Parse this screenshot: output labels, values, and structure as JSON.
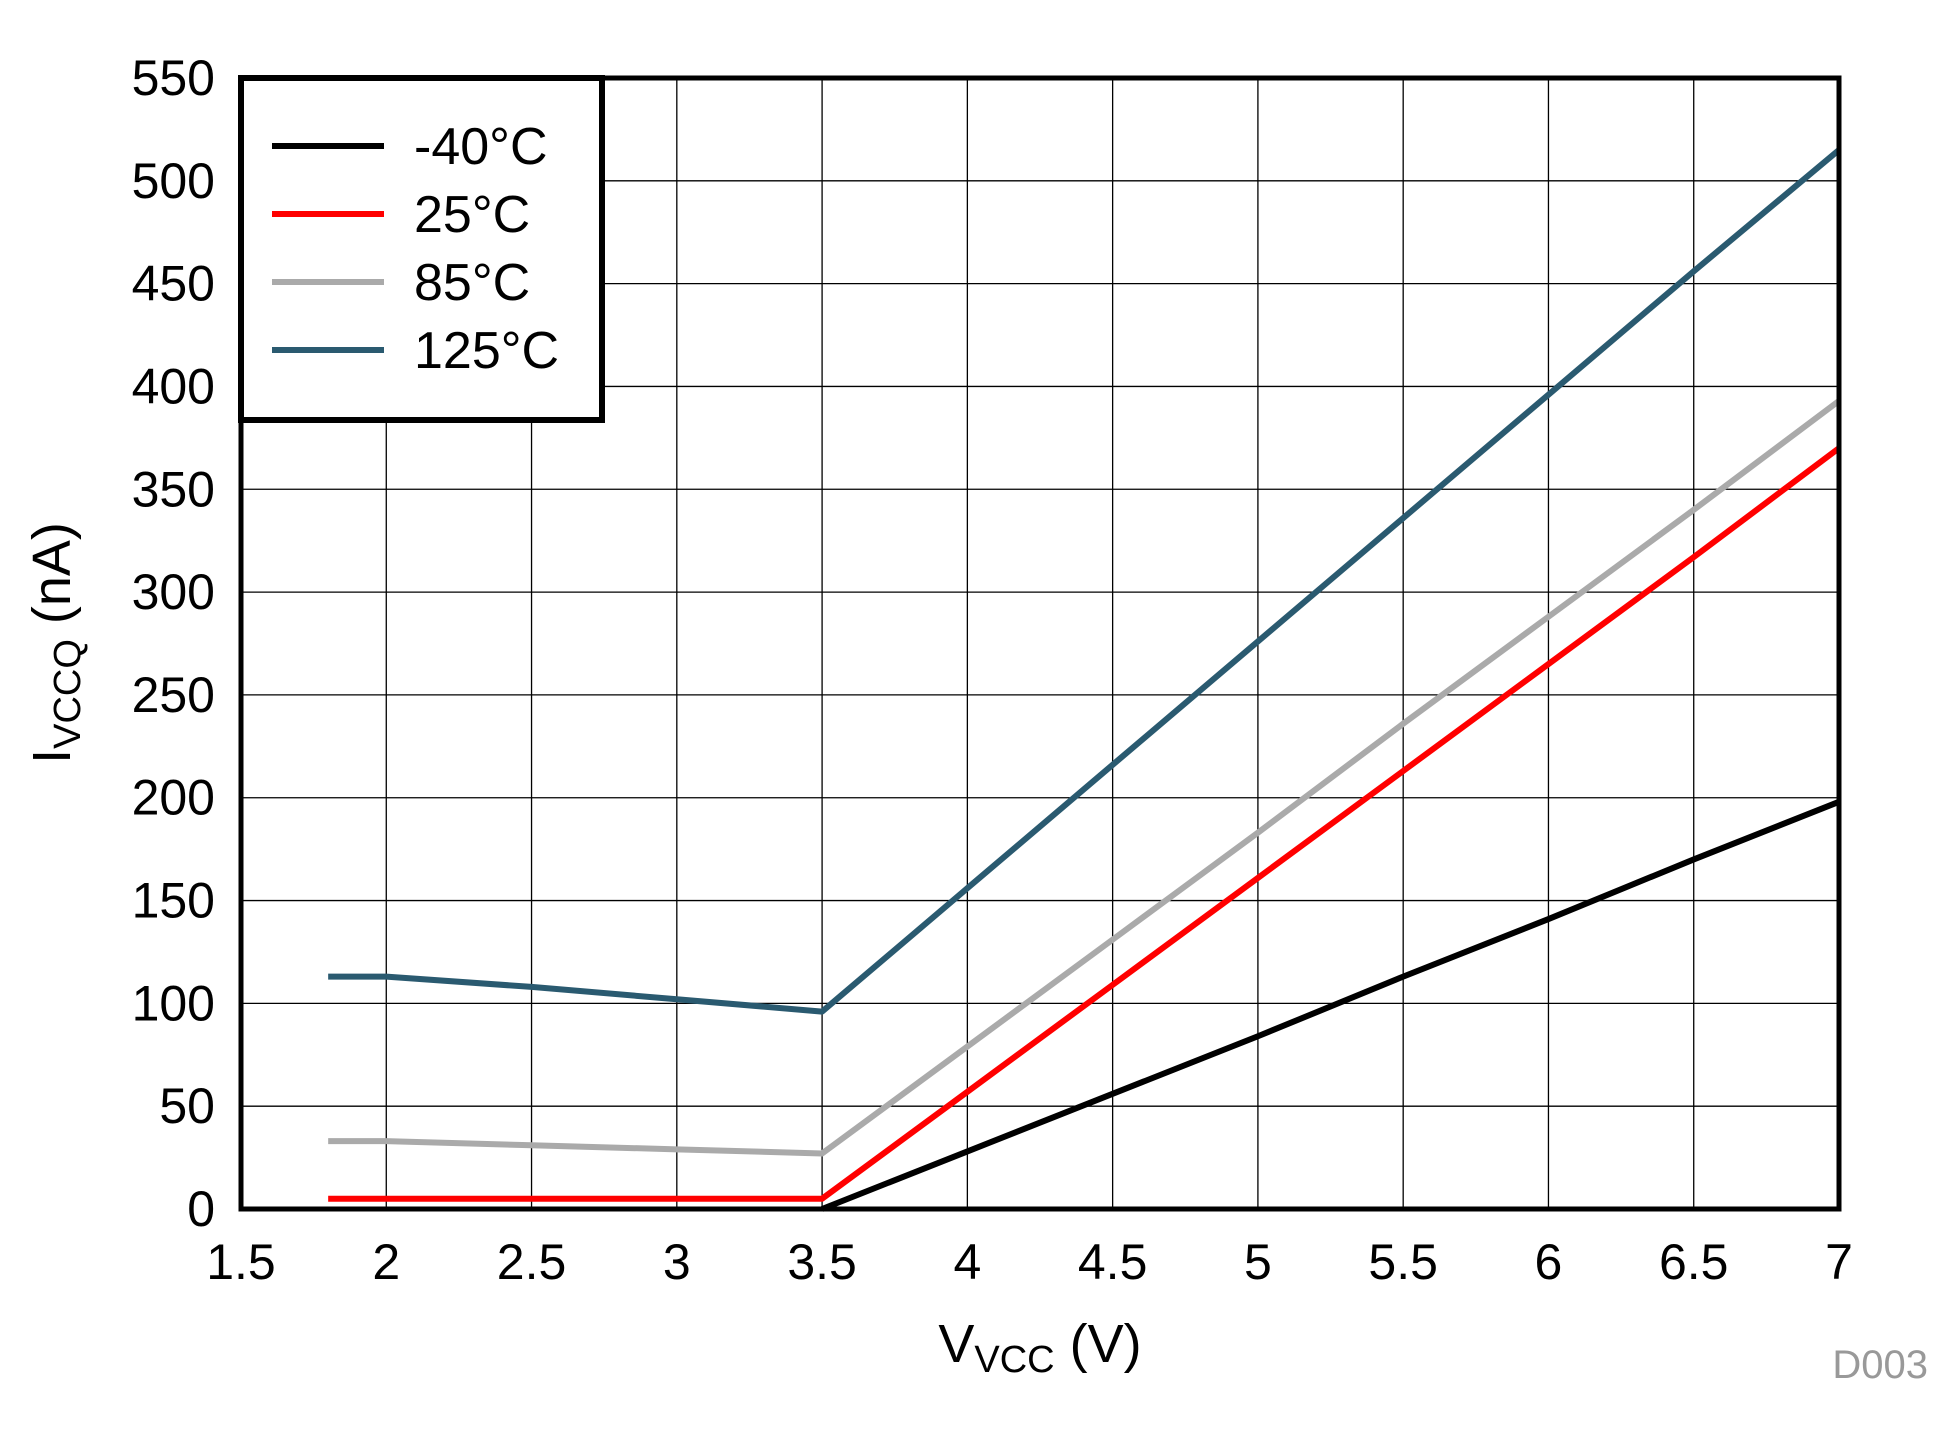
{
  "chart_data": {
    "type": "line",
    "xlabel_main": "V",
    "xlabel_sub": "VCC",
    "xlabel_unit": " (V)",
    "ylabel_main": "I",
    "ylabel_sub": "VCCQ",
    "ylabel_unit": " (nA)",
    "xlim": [
      1.5,
      7
    ],
    "ylim": [
      0,
      550
    ],
    "xticks": [
      "1.5",
      "2",
      "2.5",
      "3",
      "3.5",
      "4",
      "4.5",
      "5",
      "5.5",
      "6",
      "6.5",
      "7"
    ],
    "yticks": [
      "0",
      "50",
      "100",
      "150",
      "200",
      "250",
      "300",
      "350",
      "400",
      "450",
      "500",
      "550"
    ],
    "grid": true,
    "legend_position": "top-left",
    "figure_code": "D003",
    "series": [
      {
        "name": "-40°C",
        "color": "#000000",
        "x": [
          3.5,
          4,
          4.5,
          5,
          5.5,
          6,
          6.5,
          7
        ],
        "y": [
          0,
          28,
          56,
          84,
          113,
          141,
          170,
          198
        ]
      },
      {
        "name": "25°C",
        "color": "#ff0000",
        "x": [
          1.8,
          2,
          2.5,
          3,
          3.5,
          4,
          4.5,
          5,
          5.5,
          6,
          6.5,
          7
        ],
        "y": [
          5,
          5,
          5,
          5,
          5,
          57,
          109,
          161,
          213,
          265,
          317,
          370
        ]
      },
      {
        "name": "85°C",
        "color": "#aaaaaa",
        "x": [
          1.8,
          2,
          2.5,
          3,
          3.5,
          4,
          4.5,
          5,
          5.5,
          6,
          6.5,
          7
        ],
        "y": [
          33,
          33,
          31,
          29,
          27,
          79,
          131,
          183,
          236,
          288,
          340,
          393
        ]
      },
      {
        "name": "125°C",
        "color": "#2a5a70",
        "x": [
          1.8,
          2,
          2.5,
          3,
          3.5,
          4,
          4.5,
          5,
          5.5,
          6,
          6.5,
          7
        ],
        "y": [
          113,
          113,
          108,
          102,
          96,
          156,
          216,
          276,
          336,
          396,
          456,
          515
        ]
      }
    ]
  }
}
